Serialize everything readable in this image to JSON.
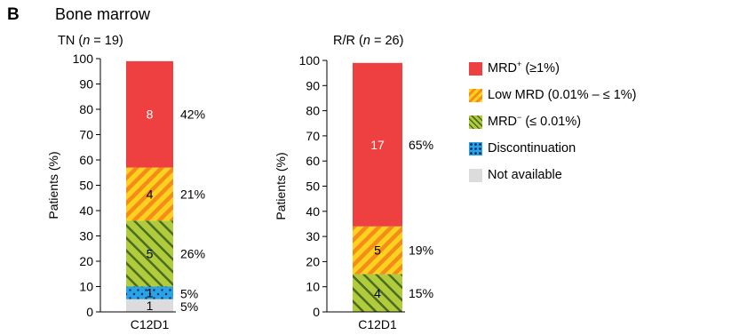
{
  "panel": {
    "letter": "B",
    "title": "Bone marrow"
  },
  "legend": {
    "items": [
      {
        "key": "mrd_pos",
        "label": "MRD",
        "sup": "+",
        "suffix": " (≥1%)",
        "color": "#ee4040"
      },
      {
        "key": "low_mrd",
        "label": "Low MRD (0.01% – ≤ 1%)",
        "sup": "",
        "suffix": "",
        "color": "#f5a51c"
      },
      {
        "key": "mrd_neg",
        "label": "MRD",
        "sup": "−",
        "suffix": " (≤ 0.01%)",
        "color": "#8fb83a"
      },
      {
        "key": "discont",
        "label": "Discontinuation",
        "sup": "",
        "suffix": "",
        "color": "#2aa2e3"
      },
      {
        "key": "na",
        "label": "Not available",
        "sup": "",
        "suffix": "",
        "color": "#dcdcdc"
      }
    ]
  },
  "chart_data": [
    {
      "type": "bar",
      "stacked": true,
      "title": "TN (n = 19)",
      "title_parts": {
        "prefix": "TN (",
        "n": "n",
        "rest": " = 19)"
      },
      "ylabel": "Patients (%)",
      "xlabel": "",
      "ylim": [
        0,
        100
      ],
      "yticks": [
        0,
        10,
        20,
        30,
        40,
        50,
        60,
        70,
        80,
        90,
        100
      ],
      "categories": [
        "C12D1"
      ],
      "series": [
        {
          "key": "na",
          "count": "1",
          "pct_label": "5%",
          "values": [
            5
          ]
        },
        {
          "key": "discont",
          "count": "1",
          "pct_label": "5%",
          "values": [
            5
          ]
        },
        {
          "key": "mrd_neg",
          "count": "5",
          "pct_label": "26%",
          "values": [
            26
          ]
        },
        {
          "key": "low_mrd",
          "count": "4",
          "pct_label": "21%",
          "values": [
            21
          ]
        },
        {
          "key": "mrd_pos",
          "count": "8",
          "pct_label": "42%",
          "values": [
            42
          ]
        }
      ]
    },
    {
      "type": "bar",
      "stacked": true,
      "title": "R/R (n = 26)",
      "title_parts": {
        "prefix": "R/R (",
        "n": "n",
        "rest": " = 26)"
      },
      "ylabel": "Patients (%)",
      "xlabel": "",
      "ylim": [
        0,
        100
      ],
      "yticks": [
        0,
        10,
        20,
        30,
        40,
        50,
        60,
        70,
        80,
        90,
        100
      ],
      "categories": [
        "C12D1"
      ],
      "series": [
        {
          "key": "mrd_neg",
          "count": "4",
          "pct_label": "15%",
          "values": [
            15
          ]
        },
        {
          "key": "low_mrd",
          "count": "5",
          "pct_label": "19%",
          "values": [
            19
          ]
        },
        {
          "key": "mrd_pos",
          "count": "17",
          "pct_label": "65%",
          "values": [
            65
          ]
        }
      ]
    }
  ]
}
